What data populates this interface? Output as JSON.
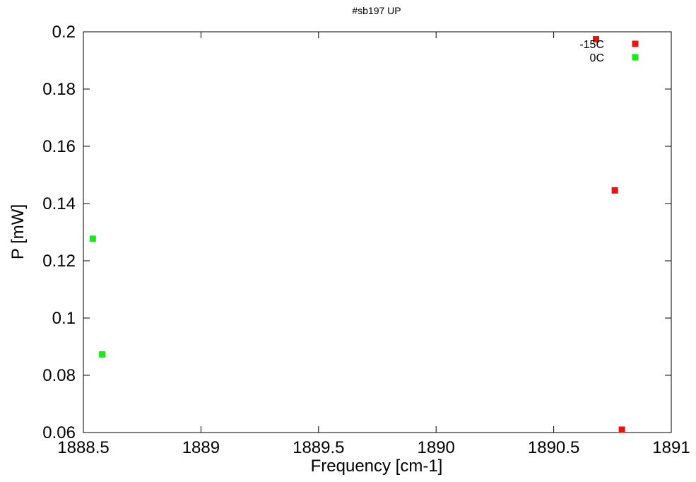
{
  "chart_data": {
    "type": "scatter",
    "title": "#sb197 UP",
    "xlabel": "Frequency [cm-1]",
    "ylabel": "P [mW]",
    "xlim": [
      1888.5,
      1891
    ],
    "ylim": [
      0.06,
      0.2
    ],
    "xticks": [
      1888.5,
      1889,
      1889.5,
      1890,
      1890.5,
      1891
    ],
    "xtick_labels": [
      "1888.5",
      "1889",
      "1889.5",
      "1890",
      "1890.5",
      "1891"
    ],
    "yticks": [
      0.06,
      0.08,
      0.1,
      0.12,
      0.14,
      0.16,
      0.18,
      0.2
    ],
    "ytick_labels": [
      "0.06",
      "0.08",
      "0.1",
      "0.12",
      "0.14",
      "0.16",
      "0.18",
      "0.2"
    ],
    "grid": false,
    "legend_position": "top-right",
    "series": [
      {
        "name": "-15C",
        "color": "#ee1111",
        "marker": "square",
        "points": [
          {
            "x": 1890.68,
            "y": 0.1974
          },
          {
            "x": 1890.76,
            "y": 0.1446
          },
          {
            "x": 1890.79,
            "y": 0.061
          }
        ]
      },
      {
        "name": "0C",
        "color": "#11ee11",
        "marker": "square",
        "points": [
          {
            "x": 1888.54,
            "y": 0.1277
          },
          {
            "x": 1888.58,
            "y": 0.0873
          }
        ]
      }
    ]
  }
}
